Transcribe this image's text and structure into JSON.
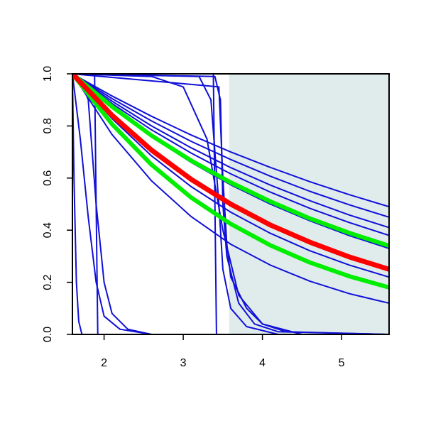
{
  "chart_data": {
    "type": "line",
    "xlim": [
      1.6,
      5.6
    ],
    "ylim": [
      0,
      1
    ],
    "xticks": [
      2,
      3,
      4,
      5
    ],
    "yticks": [
      {
        "value": 0,
        "label": "0.0"
      },
      0.2,
      0.4,
      0.6,
      0.8,
      {
        "value": 1,
        "label": "1.0"
      }
    ],
    "shaded_region": {
      "xlim": [
        3.58,
        5.6
      ],
      "color": "#e0ecec"
    },
    "series": [
      {
        "color": "#1010d8",
        "width": 2,
        "x": [
          1.6,
          2.1,
          2.6,
          3.1,
          3.6,
          4.1,
          4.6,
          5.1,
          5.6
        ],
        "values": [
          1,
          0.915,
          0.837,
          0.765,
          0.7,
          0.641,
          0.586,
          0.536,
          0.49
        ]
      },
      {
        "color": "#1010d8",
        "width": 2,
        "x": [
          1.6,
          2.1,
          2.6,
          3.1,
          3.6,
          4.1,
          4.6,
          5.1,
          5.6
        ],
        "values": [
          1,
          0.905,
          0.819,
          0.741,
          0.671,
          0.607,
          0.549,
          0.497,
          0.45
        ]
      },
      {
        "color": "#1010d8",
        "width": 2,
        "x": [
          1.6,
          2.1,
          2.6,
          3.1,
          3.6,
          4.1,
          4.6,
          5.1,
          5.6
        ],
        "values": [
          1,
          0.895,
          0.8,
          0.716,
          0.64,
          0.573,
          0.513,
          0.458,
          0.41
        ]
      },
      {
        "color": "#1010d8",
        "width": 2,
        "x": [
          1.6,
          2.1,
          2.6,
          3.1,
          3.6,
          4.1,
          4.6,
          5.1,
          5.6
        ],
        "values": [
          1,
          0.886,
          0.785,
          0.696,
          0.616,
          0.546,
          0.484,
          0.429,
          0.38
        ]
      },
      {
        "color": "#1010d8",
        "width": 2,
        "x": [
          1.6,
          2.1,
          2.6,
          3.1,
          3.6,
          4.1,
          4.6,
          5.1,
          5.6
        ],
        "values": [
          1,
          0.871,
          0.758,
          0.66,
          0.574,
          0.5,
          0.436,
          0.379,
          0.33
        ]
      },
      {
        "color": "#1010d8",
        "width": 2,
        "x": [
          1.6,
          2.1,
          2.6,
          3.1,
          3.6,
          4.1,
          4.6,
          5.1,
          5.6
        ],
        "values": [
          1,
          0.828,
          0.685,
          0.567,
          0.469,
          0.388,
          0.321,
          0.266,
          0.22
        ]
      },
      {
        "color": "#1010d8",
        "width": 2,
        "x": [
          1.6,
          2.1,
          2.6,
          3.1,
          3.6,
          4.1,
          4.6,
          5.1,
          5.6
        ],
        "values": [
          1,
          0.767,
          0.589,
          0.452,
          0.346,
          0.266,
          0.204,
          0.156,
          0.12
        ]
      },
      {
        "color": "#1010d8",
        "width": 2,
        "x": [
          1.6,
          1.62,
          1.65,
          1.68,
          1.72,
          5.6
        ],
        "values": [
          1,
          0.6,
          0.2,
          0.05,
          0,
          0
        ]
      },
      {
        "color": "#1010d8",
        "width": 2,
        "x": [
          1.6,
          1.7,
          1.8,
          1.9,
          2.0,
          2.2,
          2.6,
          3.0
        ],
        "values": [
          1,
          0.75,
          0.45,
          0.2,
          0.07,
          0.02,
          0,
          0
        ]
      },
      {
        "color": "#1010d8",
        "width": 2,
        "x": [
          1.6,
          1.88,
          1.9,
          1.92,
          5.6
        ],
        "values": [
          1,
          1,
          0.5,
          0,
          0
        ]
      },
      {
        "color": "#1010d8",
        "width": 2,
        "x": [
          1.6,
          1.7,
          1.8,
          1.9,
          2.0,
          2.1,
          2.3,
          2.6,
          3.2
        ],
        "values": [
          1,
          0.98,
          0.9,
          0.5,
          0.2,
          0.08,
          0.02,
          0,
          0
        ]
      },
      {
        "color": "#1010d8",
        "width": 2,
        "x": [
          1.6,
          3.38,
          3.4,
          3.42,
          5.6
        ],
        "values": [
          1,
          1,
          0.5,
          0,
          0
        ]
      },
      {
        "color": "#1010d8",
        "width": 2,
        "x": [
          1.6,
          3.2,
          3.35,
          3.45,
          3.5,
          3.6,
          3.8,
          4.2,
          5.6
        ],
        "values": [
          1,
          0.99,
          0.9,
          0.5,
          0.25,
          0.1,
          0.03,
          0,
          0
        ]
      },
      {
        "color": "#1010d8",
        "width": 2,
        "x": [
          1.6,
          2.6,
          3.0,
          3.3,
          3.5,
          3.7,
          4.0,
          4.5,
          5.6
        ],
        "values": [
          1,
          0.99,
          0.95,
          0.75,
          0.4,
          0.15,
          0.04,
          0,
          0
        ]
      },
      {
        "color": "#1010d8",
        "width": 2,
        "x": [
          1.6,
          3.4,
          3.47,
          3.5,
          3.55,
          3.7,
          3.9,
          4.2,
          5.6
        ],
        "values": [
          1,
          0.99,
          0.9,
          0.5,
          0.3,
          0.12,
          0.04,
          0.01,
          0
        ]
      },
      {
        "color": "#1010d8",
        "width": 2,
        "x": [
          1.6,
          3.45,
          3.5,
          3.55,
          3.6,
          3.8,
          4.0,
          4.3,
          5.6
        ],
        "values": [
          1,
          0.95,
          0.6,
          0.35,
          0.22,
          0.1,
          0.04,
          0.01,
          0
        ]
      },
      {
        "color": "#00ee00",
        "width": 6,
        "x": [
          1.6,
          2.1,
          2.6,
          3.1,
          3.6,
          4.1,
          4.6,
          5.1,
          5.6
        ],
        "values": [
          1,
          0.874,
          0.763,
          0.667,
          0.583,
          0.51,
          0.445,
          0.389,
          0.34
        ]
      },
      {
        "color": "#00ee00",
        "width": 6,
        "x": [
          1.6,
          2.1,
          2.6,
          3.1,
          3.6,
          4.1,
          4.6,
          5.1,
          5.6
        ],
        "values": [
          1,
          0.807,
          0.651,
          0.525,
          0.424,
          0.342,
          0.276,
          0.223,
          0.18
        ]
      },
      {
        "color": "#ff0000",
        "width": 7,
        "x": [
          1.6,
          2.1,
          2.6,
          3.1,
          3.6,
          4.1,
          4.6,
          5.1,
          5.6
        ],
        "values": [
          1,
          0.841,
          0.707,
          0.595,
          0.5,
          0.42,
          0.354,
          0.297,
          0.25
        ]
      }
    ]
  }
}
